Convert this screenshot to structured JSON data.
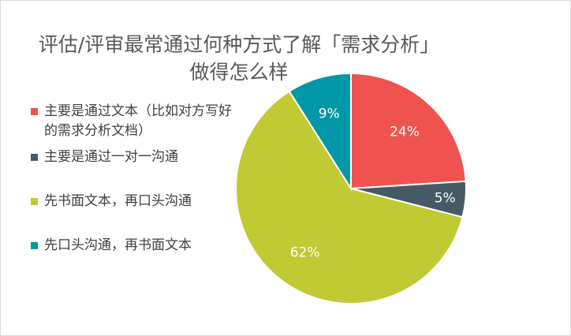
{
  "chart_data": {
    "type": "pie",
    "title_line1": "评估/评审最常通过何种方式了解「需求分析」",
    "title_line2": "做得怎么样",
    "legend_position": "left",
    "slices": [
      {
        "label": "主要是通过文本（比如对方写好的需求分析文档）",
        "value": 24,
        "display": "24%",
        "color": "#ef5350"
      },
      {
        "label": "主要是通过一对一沟通",
        "value": 5,
        "display": "5%",
        "color": "#455a64"
      },
      {
        "label": "先书面文本，再口头沟通",
        "value": 62,
        "display": "62%",
        "color": "#c0ca33"
      },
      {
        "label": "先口头沟通，再书面文本",
        "value": 9,
        "display": "9%",
        "color": "#0097a7"
      }
    ]
  }
}
